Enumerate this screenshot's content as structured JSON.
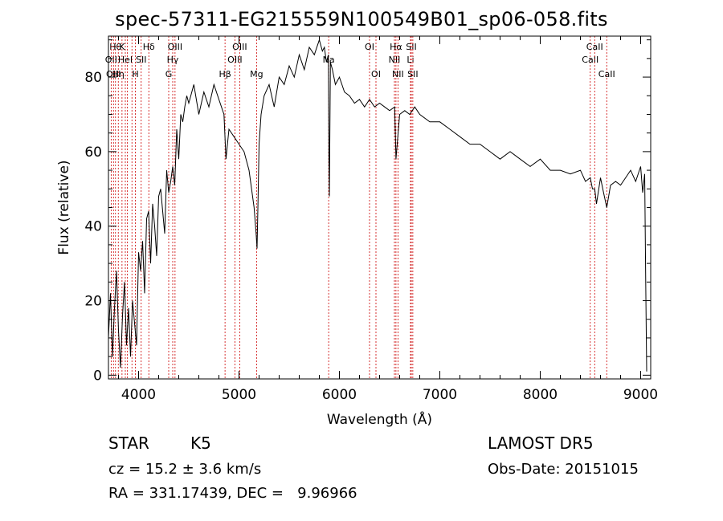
{
  "chart_data": {
    "type": "line",
    "title": "spec-57311-EG215559N100549B01_sp06-058.fits",
    "xlabel": "Wavelength (Å)",
    "ylabel": "Flux (relative)",
    "xlim": [
      3700,
      9100
    ],
    "ylim": [
      -1,
      91
    ],
    "x_ticks": [
      4000,
      5000,
      6000,
      7000,
      8000,
      9000
    ],
    "y_ticks": [
      0,
      20,
      40,
      60,
      80
    ],
    "series": [
      {
        "x": [
          3700,
          3720,
          3740,
          3760,
          3780,
          3800,
          3820,
          3840,
          3860,
          3880,
          3900,
          3920,
          3940,
          3960,
          3980,
          4000,
          4020,
          4040,
          4060,
          4080,
          4100,
          4120,
          4140,
          4160,
          4180,
          4200,
          4220,
          4240,
          4260,
          4280,
          4300,
          4320,
          4340,
          4360,
          4380,
          4400,
          4420,
          4440,
          4460,
          4480,
          4500,
          4550,
          4600,
          4650,
          4700,
          4750,
          4800,
          4850,
          4870,
          4900,
          4950,
          5000,
          5050,
          5100,
          5150,
          5170,
          5180,
          5190,
          5200,
          5220,
          5250,
          5300,
          5350,
          5400,
          5450,
          5500,
          5550,
          5600,
          5650,
          5700,
          5750,
          5800,
          5830,
          5850,
          5870,
          5890,
          5895,
          5900,
          5910,
          5930,
          5960,
          6000,
          6050,
          6100,
          6150,
          6200,
          6250,
          6300,
          6350,
          6400,
          6450,
          6500,
          6550,
          6563,
          6600,
          6650,
          6700,
          6750,
          6800,
          6900,
          7000,
          7100,
          7200,
          7300,
          7400,
          7500,
          7600,
          7700,
          7800,
          7900,
          8000,
          8100,
          8200,
          8300,
          8400,
          8450,
          8498,
          8520,
          8542,
          8560,
          8600,
          8630,
          8662,
          8700,
          8750,
          8800,
          8850,
          8900,
          8950,
          9000,
          9020,
          9040,
          9050,
          9060
        ],
        "y": [
          10,
          22,
          5,
          18,
          28,
          12,
          2,
          16,
          25,
          8,
          18,
          5,
          20,
          14,
          8,
          33,
          28,
          36,
          22,
          42,
          44,
          30,
          46,
          40,
          32,
          48,
          50,
          44,
          38,
          55,
          49,
          52,
          56,
          51,
          66,
          58,
          70,
          68,
          72,
          75,
          73,
          78,
          70,
          76,
          72,
          78,
          74,
          70,
          58,
          66,
          64,
          62,
          60,
          55,
          45,
          38,
          34,
          48,
          62,
          70,
          75,
          78,
          72,
          80,
          78,
          83,
          80,
          86,
          82,
          88,
          86,
          90,
          87,
          88,
          84,
          86,
          60,
          48,
          84,
          82,
          78,
          80,
          76,
          75,
          73,
          74,
          72,
          74,
          72,
          73,
          72,
          71,
          72,
          58,
          70,
          71,
          70,
          72,
          70,
          68,
          68,
          66,
          64,
          62,
          62,
          60,
          58,
          60,
          58,
          56,
          58,
          55,
          55,
          54,
          55,
          52,
          53,
          50,
          50,
          46,
          53,
          49,
          45,
          51,
          52,
          51,
          53,
          55,
          52,
          56,
          49,
          54,
          25,
          1
        ]
      }
    ],
    "line_markers": [
      {
        "x": 3770,
        "label": "Hθ",
        "row": 1
      },
      {
        "x": 3727,
        "label": "OII",
        "row": 2
      },
      {
        "x": 3798,
        "label": "Hη",
        "row": 3
      },
      {
        "x": 3750,
        "label": "OIII",
        "row": 3
      },
      {
        "x": 3835,
        "label": "K",
        "row": 1
      },
      {
        "x": 3868,
        "label": "HeI",
        "row": 2
      },
      {
        "x": 3889,
        "label": "",
        "row": 0
      },
      {
        "x": 3934,
        "label": "",
        "row": 0
      },
      {
        "x": 3968,
        "label": "H",
        "row": 3
      },
      {
        "x": 4026,
        "label": "SII",
        "row": 2
      },
      {
        "x": 4102,
        "label": "Hδ",
        "row": 1
      },
      {
        "x": 4300,
        "label": "G",
        "row": 3
      },
      {
        "x": 4340,
        "label": "Hγ",
        "row": 2
      },
      {
        "x": 4363,
        "label": "OIII",
        "row": 1
      },
      {
        "x": 4861,
        "label": "Hβ",
        "row": 3
      },
      {
        "x": 4959,
        "label": "OIII",
        "row": 2
      },
      {
        "x": 5007,
        "label": "OIII",
        "row": 1
      },
      {
        "x": 5175,
        "label": "Mg",
        "row": 3
      },
      {
        "x": 5893,
        "label": "Na",
        "row": 2
      },
      {
        "x": 6300,
        "label": "OI",
        "row": 1
      },
      {
        "x": 6364,
        "label": "OI",
        "row": 3
      },
      {
        "x": 6548,
        "label": "NII",
        "row": 2
      },
      {
        "x": 6563,
        "label": "Hα",
        "row": 1
      },
      {
        "x": 6583,
        "label": "NII",
        "row": 3
      },
      {
        "x": 6708,
        "label": "Li",
        "row": 2
      },
      {
        "x": 6716,
        "label": "SII",
        "row": 1
      },
      {
        "x": 6731,
        "label": "SII",
        "row": 3
      },
      {
        "x": 8498,
        "label": "CaII",
        "row": 2
      },
      {
        "x": 8542,
        "label": "CaII",
        "row": 1
      },
      {
        "x": 8662,
        "label": "CaII",
        "row": 3
      }
    ]
  },
  "info": {
    "object_class": "STAR",
    "subclass": "K5",
    "redshift": "cz = 15.2 ± 3.6 km/s",
    "coords": "RA = 331.17439, DEC =   9.96966",
    "survey": "LAMOST DR5",
    "obs_date": "Obs-Date: 20151015"
  },
  "colors": {
    "spectrum": "#000000",
    "marker_line": "#cc0000",
    "axes": "#000000"
  }
}
